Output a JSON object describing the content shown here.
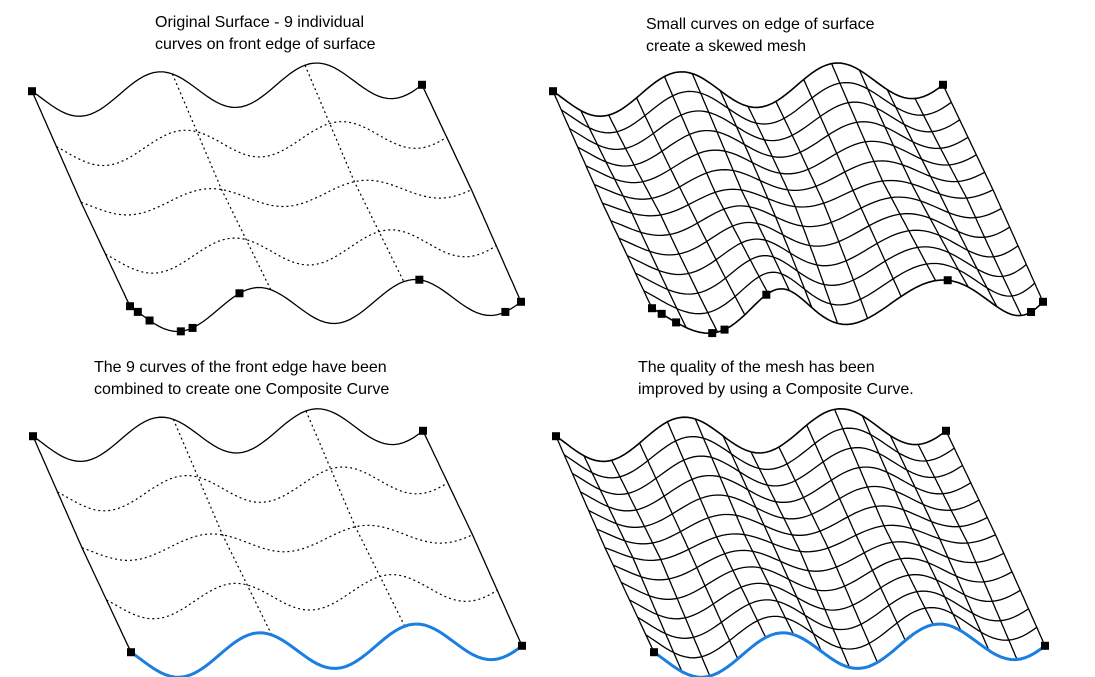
{
  "panels": [
    {
      "caption_line1": "Original Surface - 9 individual",
      "caption_line2": "curves on front edge of surface"
    },
    {
      "caption_line1": "Small curves on edge of surface",
      "caption_line2": "create a skewed mesh"
    },
    {
      "caption_line1": "The 9 curves of the front edge have been",
      "caption_line2": "combined to create one Composite Curve"
    },
    {
      "caption_line1": "The quality of the mesh has been",
      "caption_line2": "improved by using a Composite Curve."
    }
  ],
  "colors": {
    "line": "#000000",
    "composite_curve": "#1a7fe0"
  }
}
